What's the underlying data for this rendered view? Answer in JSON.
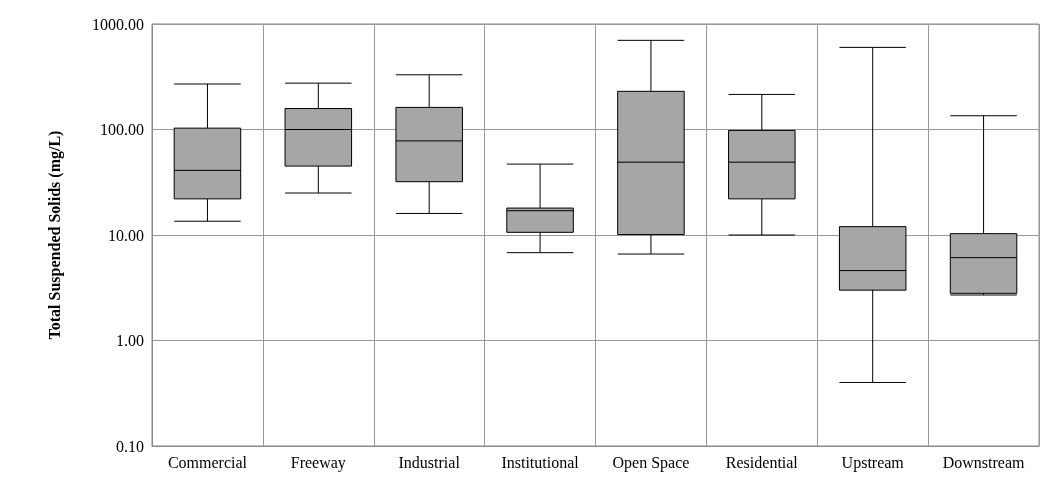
{
  "chart_data": {
    "type": "box",
    "ylabel": "Total Suspended Solids (mg/L)",
    "categories": [
      "Commercial",
      "Freeway",
      "Industrial",
      "Institutional",
      "Open Space",
      "Residential",
      "Upstream",
      "Downstream"
    ],
    "series": [
      {
        "color": "#a6a6a6",
        "boxes": [
          {
            "low": 13.5,
            "q1": 22,
            "median": 41,
            "q3": 103,
            "high": 270
          },
          {
            "low": 25,
            "q1": 45,
            "median": 100,
            "q3": 158,
            "high": 275
          },
          {
            "low": 16,
            "q1": 32,
            "median": 78,
            "q3": 162,
            "high": 330
          },
          {
            "low": 6.8,
            "q1": 10.6,
            "median": 17,
            "q3": 18,
            "high": 47
          },
          {
            "low": 6.6,
            "q1": 10.1,
            "median": 49,
            "q3": 230,
            "high": 700
          },
          {
            "low": 10,
            "q1": 22,
            "median": 49,
            "q3": 98,
            "high": 215
          },
          {
            "low": 0.4,
            "q1": 3.0,
            "median": 4.6,
            "q3": 12,
            "high": 600
          },
          {
            "low": 2.7,
            "q1": 2.8,
            "median": 6.1,
            "q3": 10.3,
            "high": 135
          }
        ]
      }
    ],
    "log": "y",
    "ylim": [
      0.1,
      1000
    ],
    "yticks": [
      {
        "value": 0.1,
        "label": "0.10"
      },
      {
        "value": 1,
        "label": "1.00"
      },
      {
        "value": 10,
        "label": "10.00"
      },
      {
        "value": 100,
        "label": "100.00"
      },
      {
        "value": 1000,
        "label": "1000.00"
      }
    ],
    "grid": true
  }
}
